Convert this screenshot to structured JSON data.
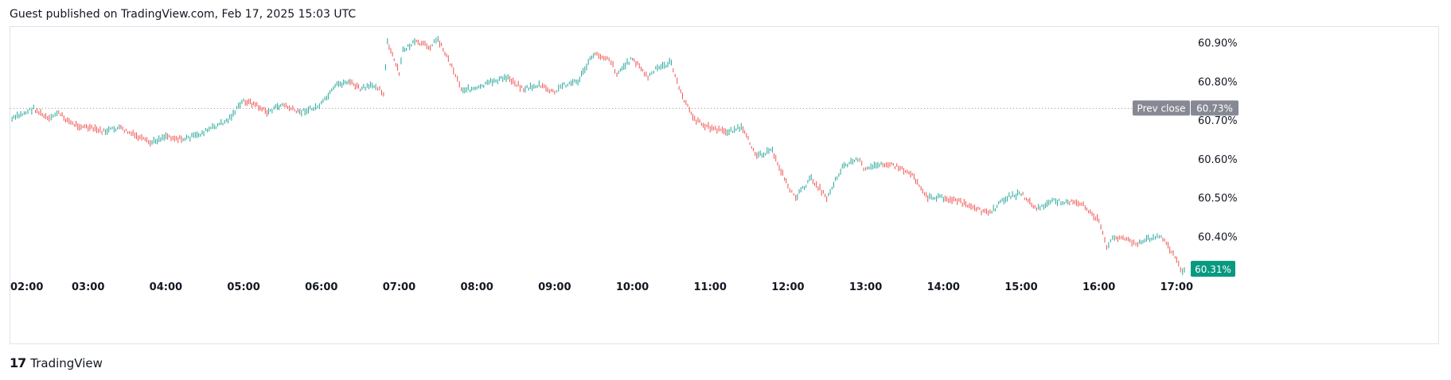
{
  "header": {
    "title": "Guest published on TradingView.com, Feb 17, 2025 15:03 UTC"
  },
  "footer": {
    "brand": "TradingView",
    "logo_glyph": "17"
  },
  "colors": {
    "up": "#26a69a",
    "down": "#ef5350",
    "grid": "#e0e3eb",
    "prev_close_bg": "#868993",
    "last_bg": "#089981",
    "text": "#131722"
  },
  "chart_data": {
    "type": "candlestick-line",
    "ylim": [
      60.3,
      60.94
    ],
    "yticks": [
      60.9,
      60.8,
      60.7,
      60.6,
      60.5,
      60.4
    ],
    "ytick_labels": [
      "60.90%",
      "60.80%",
      "60.70%",
      "60.60%",
      "60.50%",
      "60.40%"
    ],
    "xlim": [
      2.0,
      17.15
    ],
    "xticks": [
      2,
      3,
      4,
      5,
      6,
      7,
      8,
      9,
      10,
      11,
      12,
      13,
      14,
      15,
      16,
      17
    ],
    "xtick_labels": [
      "02:00",
      "03:00",
      "04:00",
      "05:00",
      "06:00",
      "07:00",
      "08:00",
      "09:00",
      "10:00",
      "11:00",
      "12:00",
      "13:00",
      "14:00",
      "15:00",
      "16:00",
      "17:00"
    ],
    "prev_close": {
      "label": "Prev close",
      "value": 60.73,
      "value_label": "60.73%"
    },
    "last": {
      "value": 60.31,
      "value_label": "60.31%"
    },
    "series": [
      {
        "x": [
          2.0,
          2.2,
          2.3,
          2.5,
          2.6,
          2.8,
          3.0,
          3.2,
          3.4,
          3.6,
          3.8,
          4.0,
          4.2,
          4.4,
          4.6,
          4.8,
          5.0,
          5.15,
          5.3,
          5.5,
          5.7,
          5.9,
          6.0,
          6.2,
          6.35,
          6.5,
          6.7,
          6.8,
          6.85,
          7.0,
          7.05,
          7.2,
          7.4,
          7.5,
          7.7,
          7.8,
          8.0,
          8.2,
          8.4,
          8.6,
          8.8,
          9.0,
          9.1,
          9.3,
          9.5,
          9.7,
          9.8,
          10.0,
          10.2,
          10.3,
          10.5,
          10.6,
          10.8,
          11.0,
          11.2,
          11.4,
          11.6,
          11.8,
          12.0,
          12.1,
          12.3,
          12.5,
          12.7,
          12.9,
          13.0,
          13.2,
          13.4,
          13.6,
          13.8,
          14.0,
          14.2,
          14.4,
          14.6,
          14.8,
          15.0,
          15.2,
          15.4,
          15.6,
          15.8,
          16.0,
          16.1,
          16.2,
          16.4,
          16.5,
          16.7,
          16.8,
          17.0,
          17.05,
          17.1
        ],
        "y": [
          60.7,
          60.72,
          60.73,
          60.7,
          60.72,
          60.69,
          60.68,
          60.67,
          60.68,
          60.66,
          60.64,
          60.66,
          60.65,
          60.66,
          60.68,
          60.7,
          60.75,
          60.74,
          60.72,
          60.74,
          60.72,
          60.73,
          60.74,
          60.79,
          60.8,
          60.78,
          60.79,
          60.77,
          60.9,
          60.82,
          60.88,
          60.9,
          60.89,
          60.91,
          60.83,
          60.78,
          60.78,
          60.8,
          60.81,
          60.78,
          60.79,
          60.77,
          60.79,
          60.8,
          60.87,
          60.86,
          60.82,
          60.86,
          60.81,
          60.83,
          60.85,
          60.78,
          60.7,
          60.68,
          60.67,
          60.68,
          60.61,
          60.62,
          60.53,
          60.5,
          60.55,
          60.5,
          60.58,
          60.6,
          60.57,
          60.59,
          60.58,
          60.56,
          60.5,
          60.5,
          60.49,
          60.47,
          60.46,
          60.5,
          60.51,
          60.47,
          60.49,
          60.49,
          60.48,
          60.44,
          60.37,
          60.4,
          60.39,
          60.38,
          60.4,
          60.4,
          60.34,
          60.31,
          60.31
        ]
      }
    ]
  }
}
